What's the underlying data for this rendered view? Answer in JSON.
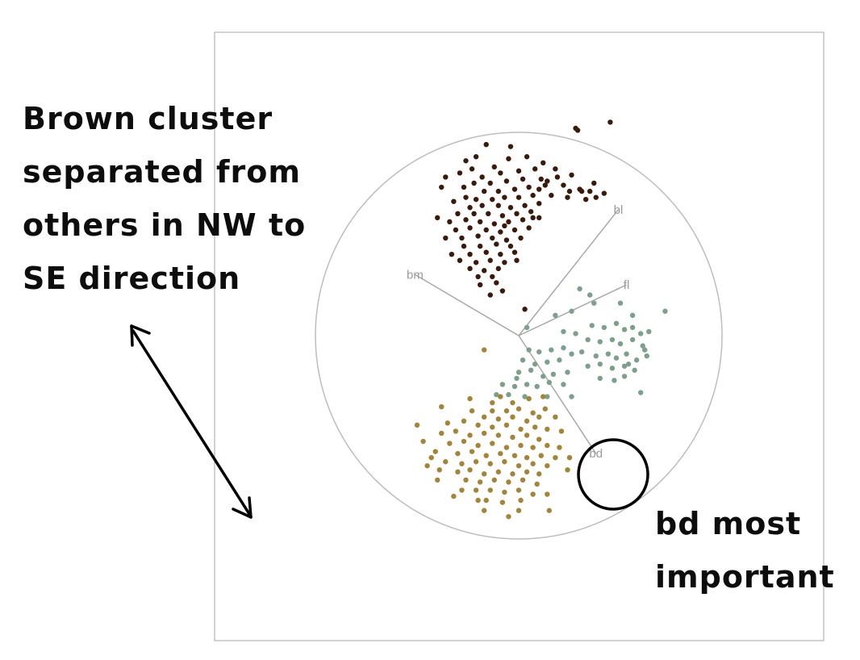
{
  "chart_data": {
    "type": "scatter",
    "title": "",
    "xlabel": "",
    "ylabel": "",
    "xlim": [
      -1,
      1
    ],
    "ylim": [
      -1,
      1
    ],
    "grid": false,
    "legend": "none",
    "axes": [
      {
        "name": "bl",
        "x": 0.49,
        "y": 0.62
      },
      {
        "name": "fl",
        "x": 0.53,
        "y": 0.25
      },
      {
        "name": "bm",
        "x": -0.51,
        "y": 0.3
      },
      {
        "name": "bd",
        "x": 0.38,
        "y": -0.58
      }
    ],
    "series": [
      {
        "color": "#3a1a0a",
        "points": [
          [
            0.45,
            1.05
          ],
          [
            0.28,
            1.02
          ],
          [
            0.29,
            1.01
          ],
          [
            -0.16,
            0.94
          ],
          [
            -0.04,
            0.93
          ],
          [
            -0.21,
            0.88
          ],
          [
            -0.26,
            0.86
          ],
          [
            -0.05,
            0.87
          ],
          [
            0.12,
            0.85
          ],
          [
            0.04,
            0.88
          ],
          [
            -0.12,
            0.83
          ],
          [
            -0.09,
            0.8
          ],
          [
            0.0,
            0.81
          ],
          [
            0.08,
            0.82
          ],
          [
            -0.18,
            0.78
          ],
          [
            -0.29,
            0.8
          ],
          [
            -0.36,
            0.78
          ],
          [
            -0.22,
            0.75
          ],
          [
            -0.14,
            0.75
          ],
          [
            -0.06,
            0.76
          ],
          [
            0.02,
            0.77
          ],
          [
            0.11,
            0.77
          ],
          [
            0.19,
            0.78
          ],
          [
            0.26,
            0.79
          ],
          [
            -0.38,
            0.73
          ],
          [
            -0.27,
            0.73
          ],
          [
            -0.17,
            0.71
          ],
          [
            -0.1,
            0.71
          ],
          [
            -0.02,
            0.72
          ],
          [
            0.05,
            0.73
          ],
          [
            0.13,
            0.74
          ],
          [
            0.22,
            0.74
          ],
          [
            0.3,
            0.72
          ],
          [
            0.35,
            0.71
          ],
          [
            -0.26,
            0.68
          ],
          [
            -0.21,
            0.67
          ],
          [
            -0.13,
            0.67
          ],
          [
            -0.07,
            0.68
          ],
          [
            0.0,
            0.68
          ],
          [
            0.07,
            0.69
          ],
          [
            0.16,
            0.69
          ],
          [
            0.24,
            0.68
          ],
          [
            0.33,
            0.67
          ],
          [
            -0.32,
            0.66
          ],
          [
            -0.24,
            0.63
          ],
          [
            -0.18,
            0.64
          ],
          [
            -0.1,
            0.64
          ],
          [
            -0.04,
            0.63
          ],
          [
            0.03,
            0.64
          ],
          [
            0.1,
            0.65
          ],
          [
            -0.3,
            0.6
          ],
          [
            -0.22,
            0.6
          ],
          [
            -0.15,
            0.6
          ],
          [
            -0.08,
            0.59
          ],
          [
            -0.01,
            0.6
          ],
          [
            0.06,
            0.61
          ],
          [
            -0.34,
            0.56
          ],
          [
            -0.26,
            0.57
          ],
          [
            -0.19,
            0.56
          ],
          [
            -0.12,
            0.55
          ],
          [
            -0.05,
            0.56
          ],
          [
            0.02,
            0.57
          ],
          [
            0.1,
            0.58
          ],
          [
            -0.31,
            0.52
          ],
          [
            -0.24,
            0.53
          ],
          [
            -0.16,
            0.52
          ],
          [
            -0.09,
            0.51
          ],
          [
            -0.02,
            0.52
          ],
          [
            0.05,
            0.53
          ],
          [
            -0.36,
            0.48
          ],
          [
            -0.28,
            0.48
          ],
          [
            -0.2,
            0.49
          ],
          [
            -0.13,
            0.48
          ],
          [
            -0.06,
            0.47
          ],
          [
            0.01,
            0.48
          ],
          [
            -0.27,
            0.44
          ],
          [
            -0.19,
            0.44
          ],
          [
            -0.11,
            0.45
          ],
          [
            -0.04,
            0.44
          ],
          [
            -0.33,
            0.4
          ],
          [
            -0.24,
            0.4
          ],
          [
            -0.16,
            0.41
          ],
          [
            -0.09,
            0.4
          ],
          [
            -0.02,
            0.41
          ],
          [
            -0.29,
            0.37
          ],
          [
            -0.21,
            0.36
          ],
          [
            -0.14,
            0.37
          ],
          [
            -0.07,
            0.36
          ],
          [
            -0.24,
            0.33
          ],
          [
            -0.17,
            0.32
          ],
          [
            -0.1,
            0.33
          ],
          [
            -0.2,
            0.29
          ],
          [
            -0.13,
            0.29
          ],
          [
            -0.19,
            0.25
          ],
          [
            -0.11,
            0.26
          ],
          [
            -0.08,
            0.22
          ],
          [
            0.03,
            0.13
          ],
          [
            -0.14,
            0.2
          ],
          [
            0.38,
            0.68
          ],
          [
            0.42,
            0.7
          ],
          [
            0.18,
            0.82
          ],
          [
            0.37,
            0.75
          ],
          [
            0.31,
            0.71
          ],
          [
            0.14,
            0.76
          ],
          [
            -0.07,
            0.54
          ],
          [
            0.07,
            0.58
          ],
          [
            -0.4,
            0.58
          ],
          [
            -0.01,
            0.37
          ],
          [
            0.1,
            0.72
          ],
          [
            -0.23,
            0.82
          ],
          [
            0.25,
            0.71
          ]
        ]
      },
      {
        "color": "#7da08d",
        "points": [
          [
            0.72,
            0.12
          ],
          [
            0.3,
            0.23
          ],
          [
            0.35,
            0.2
          ],
          [
            0.18,
            0.1
          ],
          [
            0.26,
            0.12
          ],
          [
            0.37,
            0.16
          ],
          [
            0.5,
            0.16
          ],
          [
            0.56,
            0.1
          ],
          [
            0.04,
            0.04
          ],
          [
            0.22,
            0.02
          ],
          [
            0.28,
            0.01
          ],
          [
            0.36,
            0.05
          ],
          [
            0.42,
            0.04
          ],
          [
            0.48,
            0.06
          ],
          [
            0.52,
            0.03
          ],
          [
            0.56,
            0.04
          ],
          [
            0.6,
            0.01
          ],
          [
            0.64,
            0.02
          ],
          [
            0.34,
            -0.02
          ],
          [
            0.4,
            -0.03
          ],
          [
            0.46,
            -0.02
          ],
          [
            0.5,
            -0.04
          ],
          [
            0.56,
            -0.02
          ],
          [
            0.61,
            -0.05
          ],
          [
            0.05,
            -0.07
          ],
          [
            0.1,
            -0.08
          ],
          [
            0.16,
            -0.07
          ],
          [
            0.22,
            -0.06
          ],
          [
            0.26,
            -0.09
          ],
          [
            0.31,
            -0.08
          ],
          [
            0.38,
            -0.1
          ],
          [
            0.44,
            -0.09
          ],
          [
            0.48,
            -0.11
          ],
          [
            0.53,
            -0.09
          ],
          [
            0.58,
            -0.12
          ],
          [
            0.63,
            -0.1
          ],
          [
            0.02,
            -0.12
          ],
          [
            0.08,
            -0.14
          ],
          [
            0.14,
            -0.13
          ],
          [
            0.2,
            -0.12
          ],
          [
            0.34,
            -0.15
          ],
          [
            0.4,
            -0.14
          ],
          [
            0.46,
            -0.16
          ],
          [
            0.52,
            -0.15
          ],
          [
            0.57,
            -0.17
          ],
          [
            0.0,
            -0.18
          ],
          [
            0.06,
            -0.17
          ],
          [
            0.12,
            -0.2
          ],
          [
            0.17,
            -0.19
          ],
          [
            0.24,
            -0.18
          ],
          [
            0.4,
            -0.21
          ],
          [
            0.47,
            -0.22
          ],
          [
            0.52,
            -0.2
          ],
          [
            0.04,
            -0.24
          ],
          [
            0.09,
            -0.25
          ],
          [
            0.15,
            -0.23
          ],
          [
            0.22,
            -0.24
          ],
          [
            -0.08,
            -0.24
          ],
          [
            -0.02,
            -0.25
          ],
          [
            0.14,
            -0.3
          ],
          [
            0.26,
            -0.3
          ],
          [
            0.6,
            -0.28
          ],
          [
            -0.05,
            -0.29
          ],
          [
            -0.11,
            -0.29
          ],
          [
            0.03,
            -0.3
          ],
          [
            -0.01,
            -0.21
          ],
          [
            0.54,
            -0.14
          ],
          [
            0.62,
            -0.07
          ]
        ]
      },
      {
        "color": "#a38538",
        "points": [
          [
            -0.17,
            -0.07
          ],
          [
            -0.13,
            -0.33
          ],
          [
            -0.09,
            -0.3
          ],
          [
            -0.13,
            -0.37
          ],
          [
            -0.06,
            -0.37
          ],
          [
            0.0,
            -0.36
          ],
          [
            0.07,
            -0.38
          ],
          [
            0.13,
            -0.36
          ],
          [
            -0.38,
            -0.35
          ],
          [
            -0.17,
            -0.4
          ],
          [
            -0.1,
            -0.41
          ],
          [
            -0.03,
            -0.4
          ],
          [
            0.04,
            -0.42
          ],
          [
            0.1,
            -0.4
          ],
          [
            -0.35,
            -0.43
          ],
          [
            -0.27,
            -0.42
          ],
          [
            -0.2,
            -0.44
          ],
          [
            -0.13,
            -0.45
          ],
          [
            -0.06,
            -0.44
          ],
          [
            0.01,
            -0.46
          ],
          [
            0.08,
            -0.45
          ],
          [
            0.14,
            -0.46
          ],
          [
            -0.38,
            -0.48
          ],
          [
            -0.31,
            -0.47
          ],
          [
            -0.24,
            -0.49
          ],
          [
            -0.17,
            -0.48
          ],
          [
            -0.1,
            -0.49
          ],
          [
            -0.03,
            -0.5
          ],
          [
            0.04,
            -0.49
          ],
          [
            0.1,
            -0.51
          ],
          [
            -0.34,
            -0.53
          ],
          [
            -0.27,
            -0.52
          ],
          [
            -0.2,
            -0.54
          ],
          [
            -0.13,
            -0.53
          ],
          [
            -0.06,
            -0.55
          ],
          [
            0.01,
            -0.54
          ],
          [
            0.07,
            -0.55
          ],
          [
            0.14,
            -0.54
          ],
          [
            -0.41,
            -0.57
          ],
          [
            -0.3,
            -0.58
          ],
          [
            -0.23,
            -0.57
          ],
          [
            -0.16,
            -0.59
          ],
          [
            -0.09,
            -0.58
          ],
          [
            -0.02,
            -0.59
          ],
          [
            0.04,
            -0.6
          ],
          [
            0.11,
            -0.59
          ],
          [
            0.18,
            -0.6
          ],
          [
            -0.36,
            -0.62
          ],
          [
            -0.28,
            -0.63
          ],
          [
            -0.21,
            -0.62
          ],
          [
            -0.14,
            -0.63
          ],
          [
            -0.07,
            -0.62
          ],
          [
            0.0,
            -0.64
          ],
          [
            0.07,
            -0.63
          ],
          [
            0.14,
            -0.64
          ],
          [
            -0.3,
            -0.67
          ],
          [
            -0.24,
            -0.66
          ],
          [
            -0.17,
            -0.68
          ],
          [
            -0.1,
            -0.67
          ],
          [
            -0.03,
            -0.68
          ],
          [
            0.04,
            -0.67
          ],
          [
            0.1,
            -0.68
          ],
          [
            -0.45,
            -0.64
          ],
          [
            -0.39,
            -0.66
          ],
          [
            -0.26,
            -0.71
          ],
          [
            -0.19,
            -0.72
          ],
          [
            -0.12,
            -0.71
          ],
          [
            -0.05,
            -0.72
          ],
          [
            0.02,
            -0.71
          ],
          [
            0.09,
            -0.73
          ],
          [
            -0.21,
            -0.76
          ],
          [
            -0.14,
            -0.76
          ],
          [
            -0.07,
            -0.77
          ],
          [
            0.0,
            -0.76
          ],
          [
            0.07,
            -0.78
          ],
          [
            -0.28,
            -0.76
          ],
          [
            -0.16,
            -0.81
          ],
          [
            -0.08,
            -0.82
          ],
          [
            0.01,
            -0.81
          ],
          [
            0.14,
            -0.78
          ],
          [
            -0.17,
            -0.86
          ],
          [
            0.0,
            -0.86
          ],
          [
            0.15,
            -0.86
          ],
          [
            -0.05,
            -0.89
          ],
          [
            -0.47,
            -0.52
          ],
          [
            -0.43,
            -0.6
          ],
          [
            0.2,
            -0.55
          ],
          [
            0.18,
            -0.4
          ],
          [
            0.21,
            -0.47
          ],
          [
            0.25,
            -0.6
          ],
          [
            -0.5,
            -0.44
          ],
          [
            0.24,
            -0.66
          ],
          [
            -0.32,
            -0.79
          ],
          [
            -0.4,
            -0.71
          ],
          [
            0.05,
            -0.31
          ],
          [
            -0.03,
            -0.33
          ],
          [
            0.12,
            -0.3
          ],
          [
            -0.23,
            -0.37
          ],
          [
            -0.24,
            -0.31
          ],
          [
            -0.2,
            -0.81
          ]
        ]
      }
    ]
  },
  "annotations": {
    "left_note": [
      "Brown cluster",
      "separated from",
      "others in NW to",
      "SE direction"
    ],
    "right_note": [
      "bd most",
      "important"
    ]
  }
}
